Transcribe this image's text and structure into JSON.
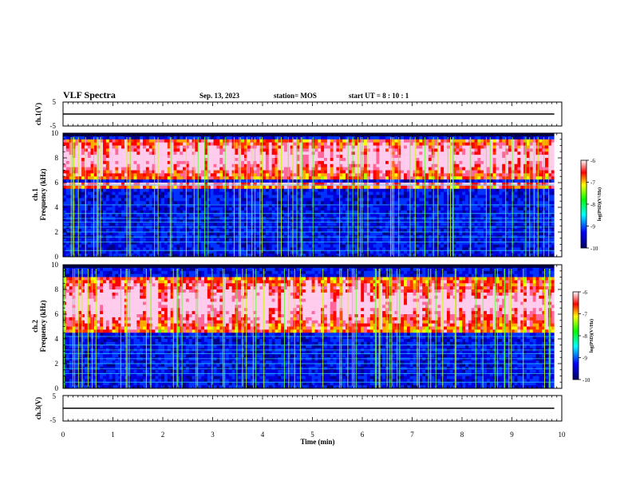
{
  "header": {
    "title": "VLF Spectra",
    "date": "Sep. 13, 2023",
    "station": "station= MOS",
    "start_ut": "start  UT =   8 : 10 : 1"
  },
  "chart_data": [
    {
      "type": "line",
      "panel": "ch1-waveform",
      "ylabel": "ch.1(V)",
      "ylim": [
        -5,
        5
      ],
      "yticks": [
        "5",
        "-5"
      ],
      "series": [
        {
          "name": "",
          "x": [
            0,
            9.85
          ],
          "values": [
            0,
            0
          ]
        }
      ]
    },
    {
      "type": "heatmap",
      "panel": "ch1-spectrogram",
      "ylabel_line1": "ch.1",
      "ylabel_line2": "Frequency  (kHz)",
      "ylim": [
        0,
        10
      ],
      "yticks": [
        "0",
        "2",
        "4",
        "6",
        "8",
        "10"
      ],
      "xlim": [
        0,
        9.85
      ],
      "colorbar": {
        "label": "log(PSD)(V²/Hz)",
        "range": [
          -10,
          -6
        ],
        "ticks": [
          "-6",
          "-7",
          "-8",
          "-9",
          "-10"
        ]
      },
      "bands_khz": [
        [
          6.3,
          9.6
        ],
        [
          5.6,
          6.0
        ]
      ],
      "lines_khz": [
        0.5,
        1.2,
        1.6,
        2.0,
        2.4,
        2.8,
        3.1,
        3.5,
        4.2,
        5.8
      ]
    },
    {
      "type": "heatmap",
      "panel": "ch2-spectrogram",
      "ylabel_line1": "ch.2",
      "ylabel_line2": "Frequency  (kHz)",
      "ylim": [
        0,
        10
      ],
      "yticks": [
        "0",
        "2",
        "4",
        "6",
        "8",
        "10"
      ],
      "xlim": [
        0,
        9.85
      ],
      "colorbar": {
        "label": "log(PSD)(V²/Hz)",
        "range": [
          -10,
          -6
        ],
        "ticks": [
          "-6",
          "-7",
          "-8",
          "-9",
          "-10"
        ]
      },
      "bands_khz": [
        [
          4.6,
          9.0
        ]
      ],
      "lines_khz": [
        0.5,
        1.2,
        1.6,
        2.0,
        2.4,
        2.8,
        3.1,
        3.5,
        4.2
      ]
    },
    {
      "type": "line",
      "panel": "ch3-waveform",
      "ylabel": "ch.3(V)",
      "ylim": [
        -5,
        5
      ],
      "yticks": [
        "5",
        "-5"
      ],
      "xlabel": "Time  (min)",
      "xlim": [
        0,
        10
      ],
      "xticks": [
        "0",
        "1",
        "2",
        "3",
        "4",
        "5",
        "6",
        "7",
        "8",
        "9",
        "10"
      ],
      "series": [
        {
          "name": "",
          "x": [
            0,
            9.85
          ],
          "values": [
            0,
            0
          ]
        }
      ]
    }
  ],
  "colors": {
    "low": "#000066",
    "mid": "#00ff00",
    "high": "#ff0000",
    "top": "#ffffff"
  }
}
